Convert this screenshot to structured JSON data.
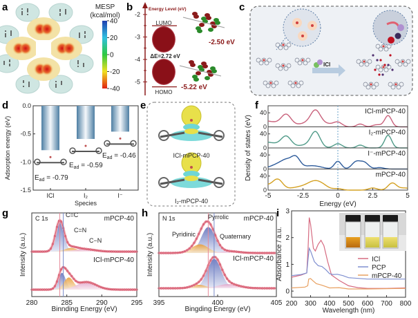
{
  "panel_labels": {
    "a": "a",
    "b": "b",
    "c": "c",
    "d": "d",
    "e": "e",
    "f": "f",
    "g": "g",
    "h": "h",
    "i": "i"
  },
  "panel_a": {
    "colorbar_title": "MESP",
    "colorbar_unit": "(kcal/mol)",
    "colorbar_ticks": [
      "40",
      "20",
      "0",
      "-20",
      "-40"
    ],
    "colors": {
      "max": "#1f3fb0",
      "mid": "#2ec840",
      "min": "#e02010"
    }
  },
  "panel_b": {
    "axis_title": "Energy Level (eV)",
    "ticks": [
      "-2",
      "-3",
      "-4",
      "-5"
    ],
    "lumo": "LUMO",
    "homo": "HOMO",
    "gap": "ΔE=2.72 eV",
    "lumo_energy": "-2.50 eV",
    "homo_energy": "-5.22 eV",
    "color": "#8b1a1a"
  },
  "panel_c": {
    "reagent": "ICl"
  },
  "panel_e": {
    "labels": [
      "ICl-mPCP-40",
      "I₂-mPCP-40"
    ]
  },
  "chart_data": [
    {
      "panel": "d",
      "type": "bar",
      "title": "",
      "categories": [
        "ICl",
        "I₂",
        "I⁻"
      ],
      "values": [
        -0.79,
        -0.59,
        -0.46
      ],
      "annotation_prefix": "E",
      "annotation_sub": "ad",
      "annotations": [
        " = -0.79",
        " = -0.59",
        " = -0.46"
      ],
      "xlabel": "Species",
      "ylabel": "Adsorption energy (eV)",
      "ylim": [
        -1.5,
        0
      ],
      "yticks": [
        0,
        -0.5,
        -1,
        -1.5
      ],
      "ytick_labels": [
        "0.0",
        "-0.5",
        "-1.0",
        "-1.5"
      ]
    },
    {
      "panel": "f",
      "type": "line",
      "xlabel": "Energy (eV)",
      "ylabel": "Density of states (eV)",
      "xlim": [
        -5,
        5
      ],
      "ylim": [
        0,
        60
      ],
      "xticks": [
        -5,
        -2.5,
        0,
        2.5,
        5
      ],
      "xtick_labels": [
        "-5",
        "-2.5",
        "0",
        "2.5",
        "5"
      ],
      "yticks": [
        0,
        40
      ],
      "ytick_labels": [
        "0",
        "40"
      ],
      "fermi_level": 0,
      "series": [
        {
          "name": "ICl-mPCP-40",
          "color": "#c8607a",
          "peaks": [
            [
              -5.5,
              18,
              1.2
            ],
            [
              -3.7,
              30,
              0.35
            ],
            [
              -2.2,
              10,
              0.6
            ],
            [
              -1.6,
              40,
              0.35
            ],
            [
              -0.8,
              8,
              0.5
            ],
            [
              0,
              12,
              0.3
            ],
            [
              1.6,
              8,
              0.25
            ],
            [
              2.8,
              6,
              0.3
            ],
            [
              3.6,
              32,
              0.25
            ]
          ]
        },
        {
          "name": "I₂-mPCP-40",
          "color": "#4f9a88",
          "peaks": [
            [
              -5.5,
              18,
              1.2
            ],
            [
              -3.7,
              28,
              0.35
            ],
            [
              -2.2,
              8,
              0.6
            ],
            [
              -1.6,
              42,
              0.33
            ],
            [
              0,
              12,
              0.3
            ],
            [
              1.6,
              8,
              0.25
            ],
            [
              3.6,
              36,
              0.25
            ]
          ]
        },
        {
          "name": "I⁻-mPCP-40",
          "color": "#2c5a9a",
          "peaks": [
            [
              -4.2,
              14,
              0.6
            ],
            [
              -3.6,
              18,
              0.4
            ],
            [
              -3,
              28,
              0.3
            ],
            [
              -2.2,
              6,
              0.5
            ],
            [
              -1.5,
              6,
              0.5
            ],
            [
              0,
              22,
              0.25
            ],
            [
              1.3,
              20,
              0.3
            ],
            [
              1.9,
              18,
              0.3
            ],
            [
              3,
              4,
              0.3
            ]
          ]
        },
        {
          "name": "mPCP-40",
          "color": "#d4a020",
          "peaks": [
            [
              -5.2,
              14,
              0.5
            ],
            [
              -4.3,
              28,
              0.35
            ],
            [
              -2.5,
              10,
              0.8
            ],
            [
              -1.6,
              20,
              0.5
            ],
            [
              -1,
              6,
              0.4
            ],
            [
              0,
              4,
              0.3
            ],
            [
              2.5,
              6,
              0.3
            ],
            [
              3.9,
              20,
              0.3
            ],
            [
              4.8,
              6,
              0.4
            ]
          ]
        }
      ]
    },
    {
      "panel": "g",
      "type": "line",
      "title": "C 1s",
      "xlabel": "Binnding Energy (eV)",
      "ylabel": "Intensity (a.u.)",
      "xlim": [
        280,
        295
      ],
      "xticks": [
        280,
        285,
        290,
        295
      ],
      "xtick_labels": [
        "280",
        "285",
        "290",
        "295"
      ],
      "ref_lines": [
        284.0,
        284.5
      ],
      "component_labels": [
        "C=C",
        "C=N",
        "C−N"
      ],
      "series": [
        {
          "name": "mPCP-40",
          "components": [
            [
              284.0,
              1.0,
              0.6
            ],
            [
              285.6,
              0.12,
              0.9
            ],
            [
              287.5,
              0.08,
              1.5
            ]
          ]
        },
        {
          "name": "ICl-mPCP-40",
          "components": [
            [
              284.3,
              0.55,
              0.55
            ],
            [
              285.3,
              0.4,
              0.7
            ],
            [
              287.8,
              0.25,
              1.4
            ]
          ]
        }
      ]
    },
    {
      "panel": "h",
      "type": "line",
      "title": "N 1s",
      "xlabel": "Bingding Energy (eV)",
      "ylabel": "Intensity (a.u.)",
      "xlim": [
        395,
        405
      ],
      "xticks": [
        395,
        400,
        405
      ],
      "xtick_labels": [
        "395",
        "400",
        "405"
      ],
      "ref_lines": [
        399.2,
        399.7
      ],
      "component_labels": [
        "Pyrrolic",
        "Pyridinic",
        "Quaternary"
      ],
      "series": [
        {
          "name": "mPCP-40",
          "components": [
            [
              399.2,
              0.75,
              0.6
            ],
            [
              398.5,
              0.25,
              0.7
            ],
            [
              401.0,
              0.05,
              0.8
            ]
          ]
        },
        {
          "name": "ICl-mPCP-40",
          "components": [
            [
              399.7,
              0.85,
              0.6
            ],
            [
              398.4,
              0.1,
              0.6
            ],
            [
              400.9,
              0.12,
              0.9
            ]
          ]
        }
      ]
    },
    {
      "panel": "i",
      "type": "line",
      "xlabel": "Wavelength (nm)",
      "ylabel": "Absorbance / a.u.",
      "xlim": [
        200,
        800
      ],
      "ylim": [
        -0.23,
        3
      ],
      "xticks": [
        200,
        300,
        400,
        500,
        600,
        700,
        800
      ],
      "xtick_labels": [
        "200",
        "300",
        "400",
        "500",
        "600",
        "700",
        "800"
      ],
      "yticks": [
        0,
        1,
        2,
        3
      ],
      "ytick_labels": [
        "0",
        "1",
        "2",
        "3"
      ],
      "legend": "right",
      "series": [
        {
          "name": "ICl",
          "color": "#d66a80",
          "points": [
            [
              200,
              0.52
            ],
            [
              250,
              0.6
            ],
            [
              280,
              0.68
            ],
            [
              287,
              1.6
            ],
            [
              293,
              2.75
            ],
            [
              300,
              2.5
            ],
            [
              315,
              1.6
            ],
            [
              325,
              1.5
            ],
            [
              340,
              1.75
            ],
            [
              355,
              1.9
            ],
            [
              370,
              1.7
            ],
            [
              390,
              1.1
            ],
            [
              410,
              0.6
            ],
            [
              450,
              0.4
            ],
            [
              500,
              0.2
            ],
            [
              550,
              0.13
            ],
            [
              600,
              0.1
            ],
            [
              700,
              0.1
            ],
            [
              800,
              0.12
            ]
          ]
        },
        {
          "name": "PCP",
          "color": "#7f8fd0",
          "points": [
            [
              200,
              0.58
            ],
            [
              250,
              0.62
            ],
            [
              280,
              0.68
            ],
            [
              287,
              1.2
            ],
            [
              293,
              1.6
            ],
            [
              300,
              1.5
            ],
            [
              320,
              1.1
            ],
            [
              340,
              0.95
            ],
            [
              360,
              0.92
            ],
            [
              380,
              0.8
            ],
            [
              400,
              0.65
            ],
            [
              420,
              0.62
            ],
            [
              440,
              0.63
            ],
            [
              470,
              0.58
            ],
            [
              500,
              0.5
            ],
            [
              600,
              0.45
            ],
            [
              800,
              0.45
            ]
          ]
        },
        {
          "name": "mPCP-40",
          "color": "#e8a060",
          "points": [
            [
              200,
              0.12
            ],
            [
              270,
              0.15
            ],
            [
              285,
              0.2
            ],
            [
              290,
              0.45
            ],
            [
              300,
              0.47
            ],
            [
              310,
              0.4
            ],
            [
              330,
              0.28
            ],
            [
              360,
              0.22
            ],
            [
              400,
              0.12
            ],
            [
              450,
              0.13
            ],
            [
              500,
              0.08
            ],
            [
              600,
              0.08
            ],
            [
              800,
              0.1
            ]
          ]
        }
      ]
    }
  ]
}
